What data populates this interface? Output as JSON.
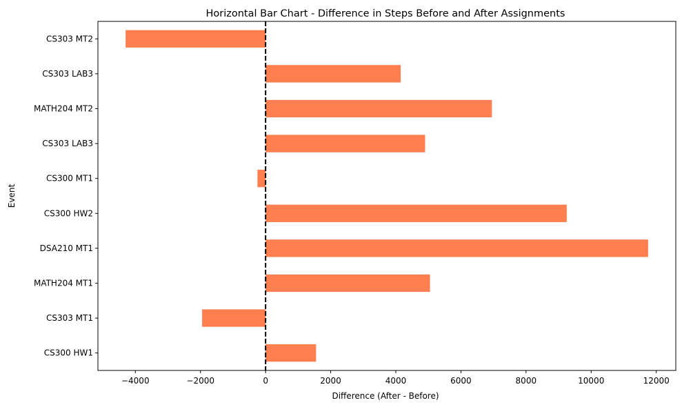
{
  "chart_data": {
    "type": "bar",
    "orientation": "horizontal",
    "title": "Horizontal Bar Chart - Difference in Steps Before and After Assignments",
    "xlabel": "Difference (After - Before)",
    "ylabel": "Event",
    "categories": [
      "CS300 HW1",
      "CS303 MT1",
      "MATH204 MT1",
      "DSA210 MT1",
      "CS300 HW2",
      "CS300 MT1",
      "CS303 LAB3",
      "MATH204 MT2",
      "CS303 LAB3",
      "CS303 MT2"
    ],
    "values": [
      1550,
      -1950,
      5050,
      11750,
      9250,
      -250,
      4900,
      6950,
      4150,
      -4300
    ],
    "xlim": [
      -5150,
      12600
    ],
    "xticks": [
      -4000,
      -2000,
      0,
      2000,
      4000,
      6000,
      8000,
      10000,
      12000
    ],
    "xtick_labels": [
      "−4000",
      "−2000",
      "0",
      "2000",
      "4000",
      "6000",
      "8000",
      "10000",
      "12000"
    ],
    "bar_color": "#ff7f50",
    "reference_line": {
      "x": 0,
      "style": "dashed",
      "color": "#000000"
    },
    "grid": false
  }
}
